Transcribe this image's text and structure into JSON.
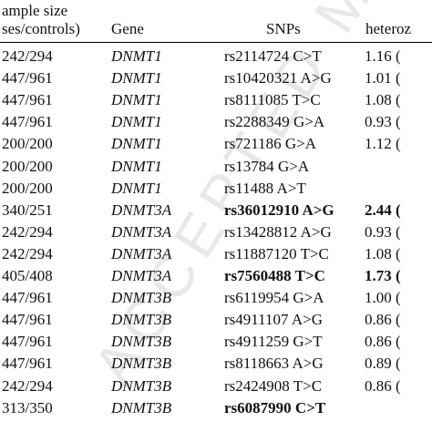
{
  "header": {
    "sample_size_line1": "ample size",
    "sample_size_line2": "ses/controls)",
    "gene": "Gene",
    "snps": "SNPs",
    "heterozygous": "heteroz"
  },
  "watermark_text": "ACCEPTED MANUSCRIPT",
  "rows": [
    {
      "sample": "242/294",
      "gene": "DNMT1",
      "snp": "rs2114724 C>T",
      "het": "1.16 (",
      "bold": false
    },
    {
      "sample": "447/961",
      "gene": "DNMT1",
      "snp": "rs10420321 A>G",
      "het": "1.01 (",
      "bold": false
    },
    {
      "sample": "447/961",
      "gene": "DNMT1",
      "snp": "rs8111085 T>C",
      "het": "1.08 (",
      "bold": false
    },
    {
      "sample": "447/961",
      "gene": "DNMT1",
      "snp": "rs2288349 G>A",
      "het": "0.93 (",
      "bold": false
    },
    {
      "sample": "200/200",
      "gene": "DNMT1",
      "snp": "rs721186 G>A",
      "het": "1.12 (",
      "bold": false
    },
    {
      "sample": "200/200",
      "gene": "DNMT1",
      "snp": "rs13784 G>A",
      "het": "",
      "bold": false
    },
    {
      "sample": "200/200",
      "gene": "DNMT1",
      "snp": "rs11488 A>T",
      "het": "",
      "bold": false
    },
    {
      "sample": "340/251",
      "gene": "DNMT3A",
      "snp": "rs36012910 A>G",
      "het": "2.44 (",
      "bold": true
    },
    {
      "sample": "242/294",
      "gene": "DNMT3A",
      "snp": "rs13428812 A>G",
      "het": "0.93 (",
      "bold": false
    },
    {
      "sample": "242/294",
      "gene": "DNMT3A",
      "snp": "rs11887120 T>C",
      "het": "1.08 (",
      "bold": false
    },
    {
      "sample": "405/408",
      "gene": "DNMT3A",
      "snp": "rs7560488 T>C",
      "het": "1.73 (",
      "bold": true
    },
    {
      "sample": "447/961",
      "gene": "DNMT3B",
      "snp": "rs6119954 G>A",
      "het": "1.00 (",
      "bold": false
    },
    {
      "sample": "447/961",
      "gene": "DNMT3B",
      "snp": "rs4911107 A>G",
      "het": "0.86 (",
      "bold": false
    },
    {
      "sample": "447/961",
      "gene": "DNMT3B",
      "snp": "rs4911259 G>T",
      "het": "0.86 (",
      "bold": false
    },
    {
      "sample": "447/961",
      "gene": "DNMT3B",
      "snp": "rs8118663 A>G",
      "het": "0.89 (",
      "bold": false
    },
    {
      "sample": "242/294",
      "gene": "DNMT3B",
      "snp": "rs2424908 T>C",
      "het": "0.86 (",
      "bold": false
    },
    {
      "sample": "313/350",
      "gene": "DNMT3B",
      "snp": "rs6087990 C>T",
      "het": "",
      "bold": true
    }
  ]
}
